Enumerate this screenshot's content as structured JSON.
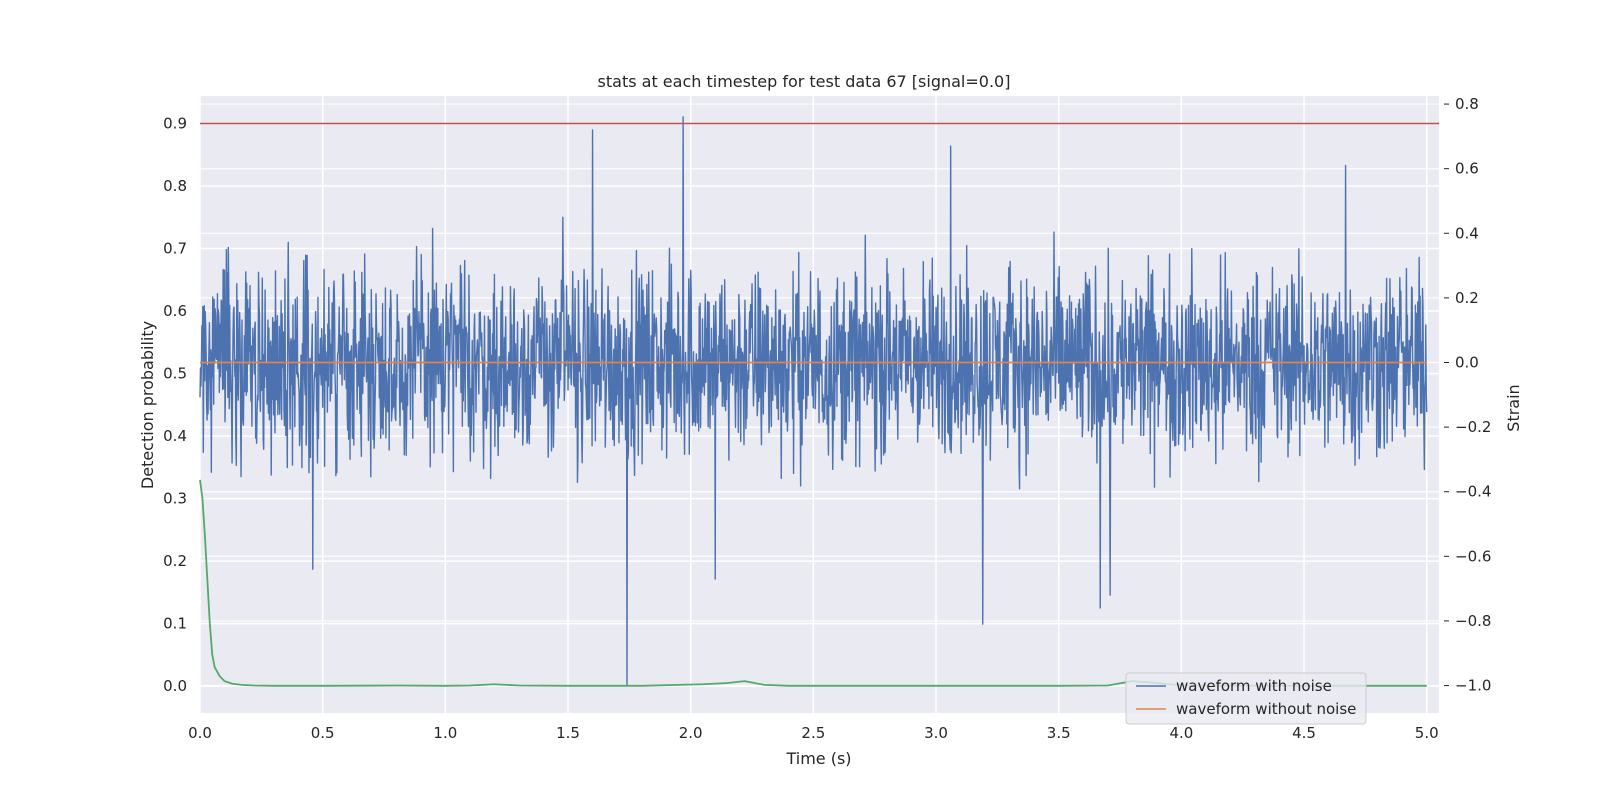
{
  "chart_data": {
    "type": "line",
    "title": "stats at each timestep for test data 67 [signal=0.0]",
    "xlabel": "Time (s)",
    "ylabel_left": "Detection probability",
    "ylabel_right": "Strain",
    "xlim": [
      0.0,
      5.05
    ],
    "ylim_left": [
      -0.043,
      0.944
    ],
    "ylim_right": [
      -1.085,
      0.825
    ],
    "x_ticks": [
      0.0,
      0.5,
      1.0,
      1.5,
      2.0,
      2.5,
      3.0,
      3.5,
      4.0,
      4.5,
      5.0
    ],
    "x_tick_labels": [
      "0.0",
      "0.5",
      "1.0",
      "1.5",
      "2.0",
      "2.5",
      "3.0",
      "3.5",
      "4.0",
      "4.5",
      "5.0"
    ],
    "y_left_ticks": [
      0.0,
      0.1,
      0.2,
      0.3,
      0.4,
      0.5,
      0.6,
      0.7,
      0.8,
      0.9
    ],
    "y_left_tick_labels": [
      "0.0",
      "0.1",
      "0.2",
      "0.3",
      "0.4",
      "0.5",
      "0.6",
      "0.7",
      "0.8",
      "0.9"
    ],
    "y_right_ticks": [
      -1.0,
      -0.8,
      -0.6,
      -0.4,
      -0.2,
      0.0,
      0.2,
      0.4,
      0.6,
      0.8
    ],
    "y_right_tick_labels": [
      "−1.0",
      "−0.8",
      "−0.6",
      "−0.4",
      "−0.2",
      "0.0",
      "0.2",
      "0.4",
      "0.6",
      "0.8"
    ],
    "grid": true,
    "legend_position": "lower-right",
    "threshold": {
      "axis": "left",
      "y": 0.9,
      "color": "#c44e52"
    },
    "series": [
      {
        "name": "waveform with noise",
        "axis": "right",
        "color": "#4c72b0",
        "kind": "noise",
        "x_range": [
          0.0,
          5.0
        ],
        "typical_amplitude": [
          -0.45,
          0.45
        ],
        "notable_extremes": [
          {
            "x": 0.46,
            "y": -0.64
          },
          {
            "x": 1.6,
            "y": 0.72
          },
          {
            "x": 1.74,
            "y": -1.0
          },
          {
            "x": 1.97,
            "y": 0.76
          },
          {
            "x": 2.1,
            "y": -0.67
          },
          {
            "x": 3.06,
            "y": 0.67
          },
          {
            "x": 3.19,
            "y": -0.81
          },
          {
            "x": 3.67,
            "y": -0.76
          },
          {
            "x": 3.71,
            "y": -0.72
          },
          {
            "x": 4.67,
            "y": 0.61
          }
        ]
      },
      {
        "name": "waveform without noise",
        "axis": "right",
        "color": "#dd8452",
        "x": [
          0.0,
          5.0
        ],
        "y": [
          0.0,
          0.0
        ]
      },
      {
        "axis": "left",
        "color": "#55a868",
        "x": [
          0.0,
          0.01,
          0.02,
          0.03,
          0.04,
          0.05,
          0.06,
          0.08,
          0.1,
          0.13,
          0.17,
          0.22,
          0.3,
          0.5,
          0.8,
          1.0,
          1.1,
          1.2,
          1.3,
          1.5,
          1.8,
          1.95,
          2.05,
          2.15,
          2.22,
          2.3,
          2.4,
          3.0,
          3.5,
          3.7,
          3.8,
          3.9,
          4.0,
          4.5,
          5.0
        ],
        "y": [
          0.33,
          0.3,
          0.24,
          0.17,
          0.1,
          0.05,
          0.03,
          0.016,
          0.008,
          0.004,
          0.002,
          0.001,
          0.0005,
          0.0005,
          0.001,
          0.0005,
          0.001,
          0.003,
          0.001,
          0.0005,
          0.0005,
          0.002,
          0.003,
          0.005,
          0.008,
          0.002,
          0.0005,
          0.0005,
          0.0005,
          0.001,
          0.008,
          0.005,
          0.001,
          0.0005,
          0.0005
        ]
      }
    ]
  }
}
